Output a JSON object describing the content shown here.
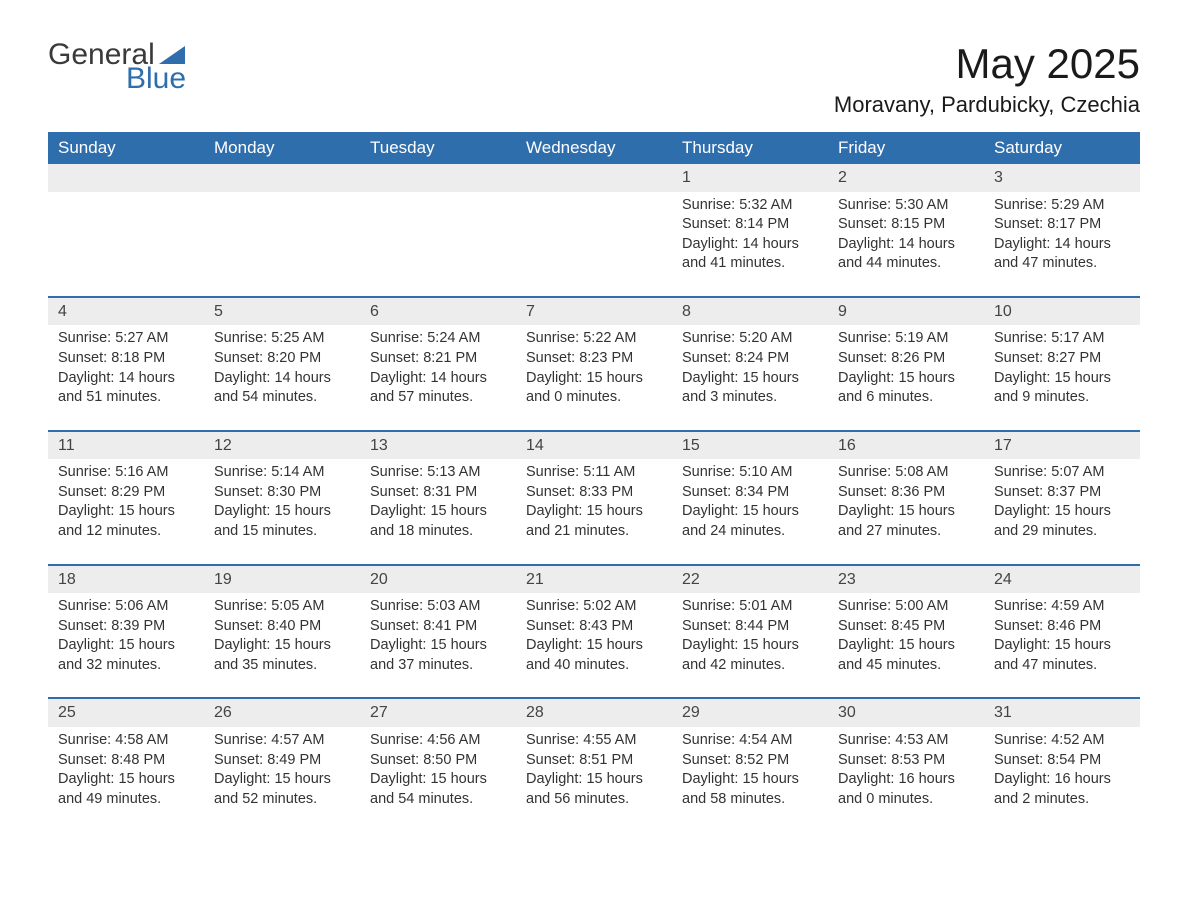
{
  "brand": {
    "part1": "General",
    "part2": "Blue",
    "accent_color": "#2f6ead"
  },
  "title": "May 2025",
  "location": "Moravany, Pardubicky, Czechia",
  "colors": {
    "header_bg": "#2f6ead",
    "header_text": "#ffffff",
    "daynum_bg": "#ededed",
    "text": "#333333",
    "page_bg": "#ffffff"
  },
  "typography": {
    "title_fontsize": 42,
    "location_fontsize": 22,
    "header_fontsize": 17,
    "cell_fontsize": 14.5
  },
  "weekdays": [
    "Sunday",
    "Monday",
    "Tuesday",
    "Wednesday",
    "Thursday",
    "Friday",
    "Saturday"
  ],
  "blank_leading": 4,
  "days": [
    {
      "n": "1",
      "sunrise": "5:32 AM",
      "sunset": "8:14 PM",
      "dl_h": 14,
      "dl_m": 41
    },
    {
      "n": "2",
      "sunrise": "5:30 AM",
      "sunset": "8:15 PM",
      "dl_h": 14,
      "dl_m": 44
    },
    {
      "n": "3",
      "sunrise": "5:29 AM",
      "sunset": "8:17 PM",
      "dl_h": 14,
      "dl_m": 47
    },
    {
      "n": "4",
      "sunrise": "5:27 AM",
      "sunset": "8:18 PM",
      "dl_h": 14,
      "dl_m": 51
    },
    {
      "n": "5",
      "sunrise": "5:25 AM",
      "sunset": "8:20 PM",
      "dl_h": 14,
      "dl_m": 54
    },
    {
      "n": "6",
      "sunrise": "5:24 AM",
      "sunset": "8:21 PM",
      "dl_h": 14,
      "dl_m": 57
    },
    {
      "n": "7",
      "sunrise": "5:22 AM",
      "sunset": "8:23 PM",
      "dl_h": 15,
      "dl_m": 0
    },
    {
      "n": "8",
      "sunrise": "5:20 AM",
      "sunset": "8:24 PM",
      "dl_h": 15,
      "dl_m": 3
    },
    {
      "n": "9",
      "sunrise": "5:19 AM",
      "sunset": "8:26 PM",
      "dl_h": 15,
      "dl_m": 6
    },
    {
      "n": "10",
      "sunrise": "5:17 AM",
      "sunset": "8:27 PM",
      "dl_h": 15,
      "dl_m": 9
    },
    {
      "n": "11",
      "sunrise": "5:16 AM",
      "sunset": "8:29 PM",
      "dl_h": 15,
      "dl_m": 12
    },
    {
      "n": "12",
      "sunrise": "5:14 AM",
      "sunset": "8:30 PM",
      "dl_h": 15,
      "dl_m": 15
    },
    {
      "n": "13",
      "sunrise": "5:13 AM",
      "sunset": "8:31 PM",
      "dl_h": 15,
      "dl_m": 18
    },
    {
      "n": "14",
      "sunrise": "5:11 AM",
      "sunset": "8:33 PM",
      "dl_h": 15,
      "dl_m": 21
    },
    {
      "n": "15",
      "sunrise": "5:10 AM",
      "sunset": "8:34 PM",
      "dl_h": 15,
      "dl_m": 24
    },
    {
      "n": "16",
      "sunrise": "5:08 AM",
      "sunset": "8:36 PM",
      "dl_h": 15,
      "dl_m": 27
    },
    {
      "n": "17",
      "sunrise": "5:07 AM",
      "sunset": "8:37 PM",
      "dl_h": 15,
      "dl_m": 29
    },
    {
      "n": "18",
      "sunrise": "5:06 AM",
      "sunset": "8:39 PM",
      "dl_h": 15,
      "dl_m": 32
    },
    {
      "n": "19",
      "sunrise": "5:05 AM",
      "sunset": "8:40 PM",
      "dl_h": 15,
      "dl_m": 35
    },
    {
      "n": "20",
      "sunrise": "5:03 AM",
      "sunset": "8:41 PM",
      "dl_h": 15,
      "dl_m": 37
    },
    {
      "n": "21",
      "sunrise": "5:02 AM",
      "sunset": "8:43 PM",
      "dl_h": 15,
      "dl_m": 40
    },
    {
      "n": "22",
      "sunrise": "5:01 AM",
      "sunset": "8:44 PM",
      "dl_h": 15,
      "dl_m": 42
    },
    {
      "n": "23",
      "sunrise": "5:00 AM",
      "sunset": "8:45 PM",
      "dl_h": 15,
      "dl_m": 45
    },
    {
      "n": "24",
      "sunrise": "4:59 AM",
      "sunset": "8:46 PM",
      "dl_h": 15,
      "dl_m": 47
    },
    {
      "n": "25",
      "sunrise": "4:58 AM",
      "sunset": "8:48 PM",
      "dl_h": 15,
      "dl_m": 49
    },
    {
      "n": "26",
      "sunrise": "4:57 AM",
      "sunset": "8:49 PM",
      "dl_h": 15,
      "dl_m": 52
    },
    {
      "n": "27",
      "sunrise": "4:56 AM",
      "sunset": "8:50 PM",
      "dl_h": 15,
      "dl_m": 54
    },
    {
      "n": "28",
      "sunrise": "4:55 AM",
      "sunset": "8:51 PM",
      "dl_h": 15,
      "dl_m": 56
    },
    {
      "n": "29",
      "sunrise": "4:54 AM",
      "sunset": "8:52 PM",
      "dl_h": 15,
      "dl_m": 58
    },
    {
      "n": "30",
      "sunrise": "4:53 AM",
      "sunset": "8:53 PM",
      "dl_h": 16,
      "dl_m": 0
    },
    {
      "n": "31",
      "sunrise": "4:52 AM",
      "sunset": "8:54 PM",
      "dl_h": 16,
      "dl_m": 2
    }
  ],
  "labels": {
    "sunrise_prefix": "Sunrise: ",
    "sunset_prefix": "Sunset: ",
    "daylight_prefix": "Daylight: ",
    "hours_word": " hours",
    "and_word": "and ",
    "minutes_word": " minutes."
  }
}
